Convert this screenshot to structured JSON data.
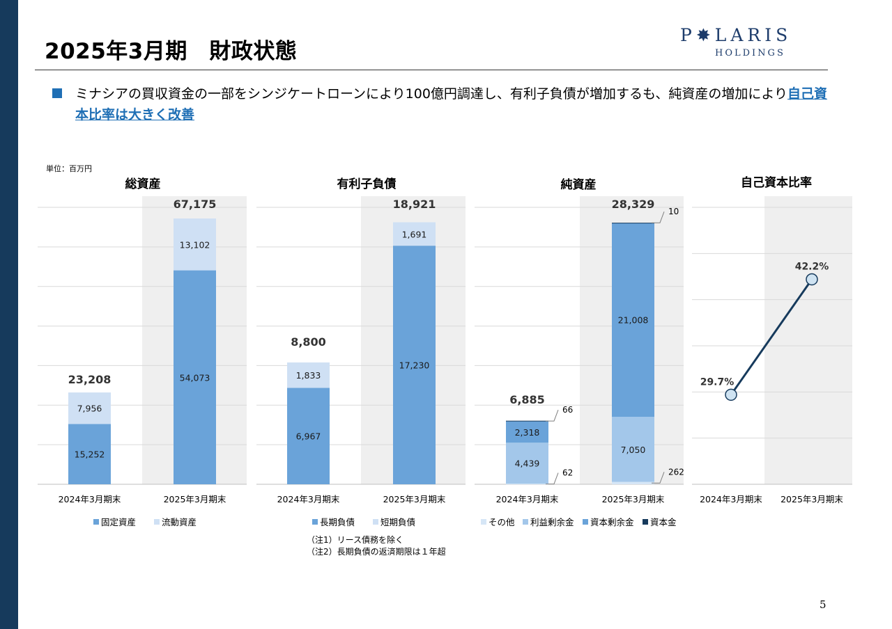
{
  "header": {
    "title": "2025年3月期　財政状態",
    "logo": {
      "main": "P✸LARIS",
      "sub": "HOLDINGS"
    }
  },
  "bullet": {
    "text": "ミナシアの買収資金の一部をシンジケートローンにより100億円調達し、有利子負債が増加するも、純資産の増加により",
    "highlight": "自己資本比率は大きく改善"
  },
  "unit_label": "単位：百万円",
  "notes": [
    "（注1）リース債務を除く",
    "（注2）長期負債の返済期限は１年超"
  ],
  "page_number": "5",
  "colors": {
    "dark_blue": "#163a5c",
    "mid_blue": "#6aa3d9",
    "light_blue": "#cfe0f4",
    "pale_blue": "#a3c7ea",
    "highlight_bg": "#efefef"
  },
  "chart_data": [
    {
      "type": "bar",
      "stacked": true,
      "title": "総資産",
      "categories": [
        "2024年3月期末",
        "2025年3月期末"
      ],
      "series": [
        {
          "name": "固定資産",
          "values": [
            15252,
            54073
          ],
          "labels": [
            "15,252",
            "54,073"
          ]
        },
        {
          "name": "流動資産",
          "values": [
            7956,
            13102
          ],
          "labels": [
            "7,956",
            "13,102"
          ]
        }
      ],
      "totals": [
        "23,208",
        "67,175"
      ],
      "ylim": [
        0,
        70000
      ],
      "grid": true,
      "legend": "bottom"
    },
    {
      "type": "bar",
      "stacked": true,
      "title": "有利子負債",
      "categories": [
        "2024年3月期末",
        "2025年3月期末"
      ],
      "series": [
        {
          "name": "長期負債",
          "values": [
            6967,
            17230
          ],
          "labels": [
            "6,967",
            "17,230"
          ]
        },
        {
          "name": "短期負債",
          "values": [
            1833,
            1691
          ],
          "labels": [
            "1,833",
            "1,691"
          ]
        }
      ],
      "totals": [
        "8,800",
        "18,921"
      ],
      "ylim": [
        0,
        20000
      ],
      "grid": true,
      "legend": "bottom"
    },
    {
      "type": "bar",
      "stacked": true,
      "title": "純資産",
      "categories": [
        "2024年3月期末",
        "2025年3月期末"
      ],
      "series": [
        {
          "name": "その他",
          "values": [
            62,
            262
          ],
          "labels": [
            "62",
            "262"
          ]
        },
        {
          "name": "利益剰余金",
          "values": [
            4439,
            7050
          ],
          "labels": [
            "4,439",
            "7,050"
          ]
        },
        {
          "name": "資本剰余金",
          "values": [
            2318,
            21008
          ],
          "labels": [
            "2,318",
            "21,008"
          ]
        },
        {
          "name": "資本金",
          "values": [
            66,
            10
          ],
          "labels": [
            "66",
            "10"
          ]
        }
      ],
      "totals": [
        "6,885",
        "28,329"
      ],
      "ylim": [
        0,
        30000
      ],
      "grid": true,
      "legend": "bottom"
    },
    {
      "type": "line",
      "title": "自己資本比率",
      "categories": [
        "2024年3月期末",
        "2025年3月期末"
      ],
      "values": [
        29.7,
        42.2
      ],
      "labels": [
        "29.7%",
        "42.2%"
      ],
      "ylim": [
        20,
        50
      ],
      "grid": true
    }
  ]
}
